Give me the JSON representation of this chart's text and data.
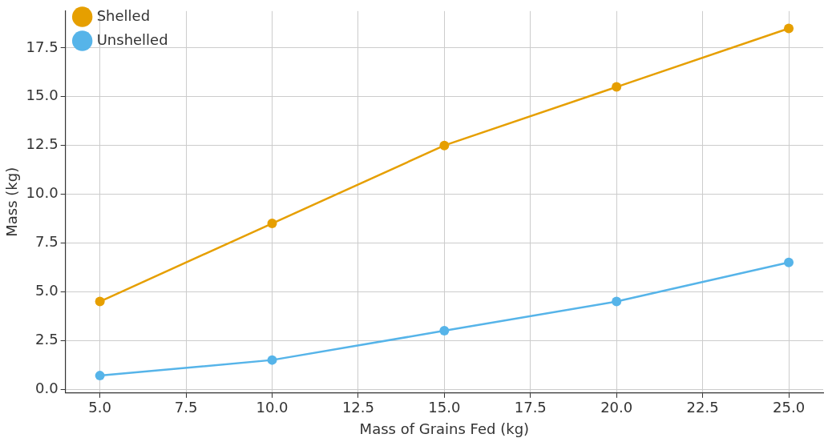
{
  "chart_data": {
    "type": "line",
    "xlabel": "Mass of Grains Fed (kg)",
    "ylabel": "Mass (kg)",
    "x": [
      5,
      10,
      15,
      20,
      25
    ],
    "series": [
      {
        "name": "Shelled",
        "color": "#e69f00",
        "values": [
          4.5,
          8.5,
          12.5,
          15.5,
          18.5
        ]
      },
      {
        "name": "Unshelled",
        "color": "#56b4e9",
        "values": [
          0.7,
          1.5,
          3.0,
          4.5,
          6.5
        ]
      }
    ],
    "xlim": [
      4,
      26
    ],
    "ylim": [
      -0.19,
      19.39
    ],
    "xticks": [
      {
        "value": 5,
        "label": "5.0"
      },
      {
        "value": 7.5,
        "label": "7.5"
      },
      {
        "value": 10,
        "label": "10.0"
      },
      {
        "value": 12.5,
        "label": "12.5"
      },
      {
        "value": 15,
        "label": "15.0"
      },
      {
        "value": 17.5,
        "label": "17.5"
      },
      {
        "value": 20,
        "label": "20.0"
      },
      {
        "value": 22.5,
        "label": "22.5"
      },
      {
        "value": 25,
        "label": "25.0"
      }
    ],
    "yticks": [
      {
        "value": 0,
        "label": "0.0"
      },
      {
        "value": 2.5,
        "label": "2.5"
      },
      {
        "value": 5,
        "label": "5.0"
      },
      {
        "value": 7.5,
        "label": "7.5"
      },
      {
        "value": 10,
        "label": "10.0"
      },
      {
        "value": 12.5,
        "label": "12.5"
      },
      {
        "value": 15,
        "label": "15.0"
      },
      {
        "value": 17.5,
        "label": "17.5"
      }
    ],
    "grid": true,
    "legend": "top left",
    "marker": "circle",
    "line_style": "solid"
  }
}
